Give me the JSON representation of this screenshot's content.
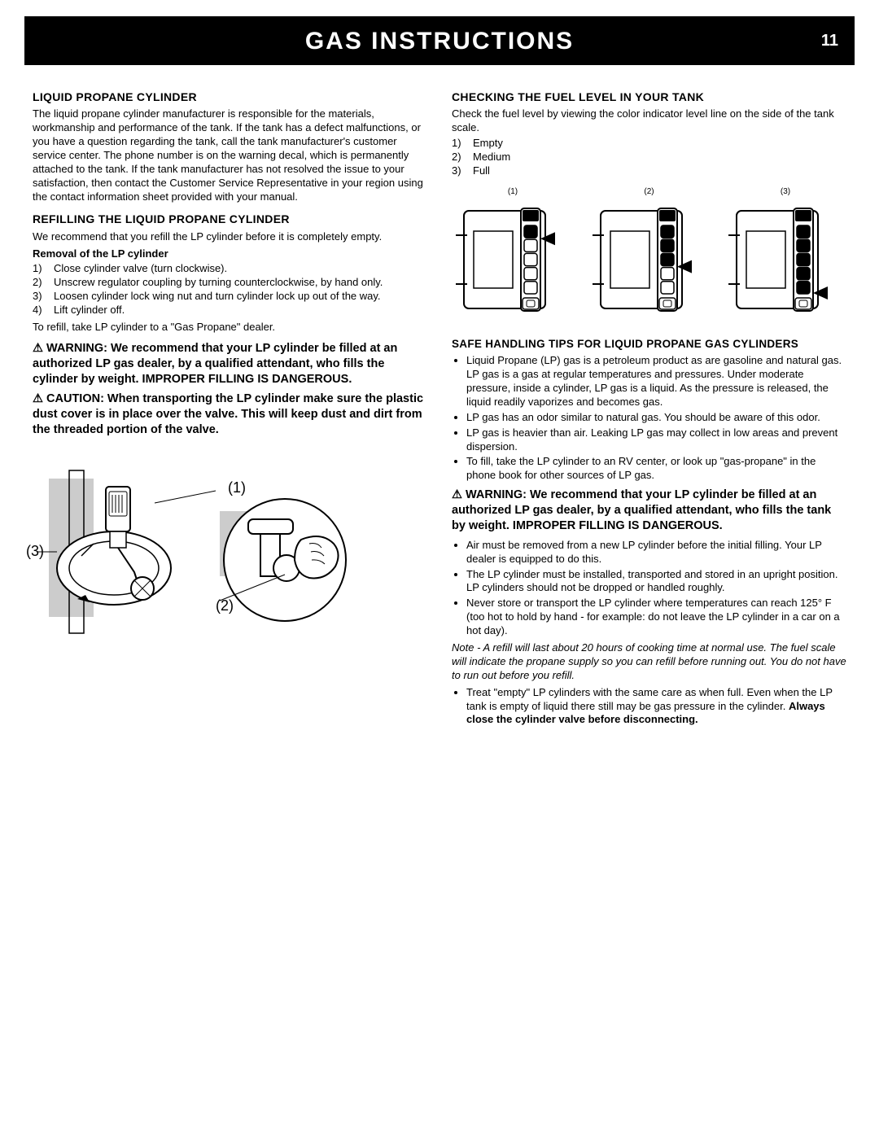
{
  "header": {
    "title": "GAS INSTRUCTIONS",
    "page": "11"
  },
  "left": {
    "s1_h": "LIQUID PROPANE CYLINDER",
    "s1_p": "The liquid propane cylinder manufacturer is responsible for the materials, workmanship and performance of the tank. If the tank has a defect malfunctions, or you have a question regarding the tank, call the tank manufacturer's customer service center. The phone number is on the warning decal, which is permanently attached to the tank. If the tank manufacturer has not resolved the issue to your satisfaction, then contact the Customer Service Representative in your region using the contact information sheet provided with your manual.",
    "s2_h": "REFILLING THE LIQUID PROPANE CYLINDER",
    "s2_p": "We recommend that you refill the LP cylinder before it is completely empty.",
    "s2_sub": "Removal of the LP cylinder",
    "s2_steps": [
      "Close cylinder valve (turn clockwise).",
      "Unscrew regulator coupling by turning counterclockwise, by hand only.",
      "Loosen cylinder lock wing nut and turn cylinder lock up out of the way.",
      "Lift cylinder off."
    ],
    "s2_after": "To refill, take LP cylinder to a \"Gas Propane\" dealer.",
    "warn1": "⚠ WARNING: We recommend that your LP cylinder be filled at an authorized LP gas dealer, by a qualified attendant, who fills the cylinder by weight. IMPROPER FILLING IS DANGEROUS.",
    "caution1": "⚠ CAUTION: When transporting the LP cylinder make sure the plastic dust cover is in place over the valve. This will keep dust and dirt from the threaded portion of the valve.",
    "fig_callouts": {
      "c1": "(1)",
      "c2": "(2)",
      "c3": "(3)"
    }
  },
  "right": {
    "s3_h": "CHECKING THE FUEL LEVEL IN YOUR TANK",
    "s3_p": "Check the fuel level by viewing the color indicator level line on the side of the tank scale.",
    "s3_levels": [
      "Empty",
      "Medium",
      "Full"
    ],
    "gauge_labels": [
      "(1)",
      "(2)",
      "(3)"
    ],
    "gauge_fill": [
      1,
      3,
      5
    ],
    "gauge_total": 5,
    "s4_h": "SAFE HANDLING TIPS FOR LIQUID PROPANE GAS CYLINDERS",
    "s4_b1": "Liquid Propane (LP) gas is a petroleum product as are gasoline and natural gas. LP gas is a gas at regular temperatures and pressures. Under moderate pressure, inside a cylinder, LP gas is a liquid. As the pressure is released, the liquid readily vaporizes and becomes gas.",
    "s4_b2": "LP gas has an odor similar to natural gas. You should be aware of this odor.",
    "s4_b3": "LP gas is heavier than air. Leaking LP gas may collect in low areas and prevent dispersion.",
    "s4_b4": "To fill, take the LP cylinder to an RV center, or look up \"gas-propane\" in the phone book for other sources of LP gas.",
    "warn2": "⚠ WARNING: We recommend that your LP cylinder be filled at an authorized LP gas dealer, by a qualified attendant, who fills the tank by weight. IMPROPER FILLING IS DANGEROUS.",
    "s4_b5": "Air must be removed from a new LP cylinder before the initial filling. Your LP dealer is equipped to do this.",
    "s4_b6": "The LP cylinder must be installed, transported and stored in an upright position. LP cylinders should not be dropped or handled roughly.",
    "s4_b7": "Never store or transport the LP cylinder where temperatures can reach 125° F (too hot to hold by hand - for example: do not leave the LP cylinder in a car on a hot day).",
    "note": "Note - A refill will last about 20 hours of cooking time at normal use. The fuel scale will indicate the propane supply so you can refill before running out. You do not have to run out before you refill.",
    "s4_b8a": "Treat \"empty\" LP cylinders with the same care as when full. Even when the LP tank is empty of liquid there still may be gas pressure in the cylinder. ",
    "s4_b8b": "Always close the cylinder valve before disconnecting."
  },
  "style": {
    "header_bg": "#000000",
    "header_fg": "#ffffff",
    "body_fg": "#000000",
    "body_bg": "#ffffff",
    "h_fontsize": 14,
    "body_fontsize": 13,
    "bold_fontsize": 14.5,
    "gauge_stroke": "#000000",
    "gauge_fill_empty": "#ffffff",
    "gauge_fill_full": "#000000",
    "arrow_fill": "#000000",
    "fig_gray": "#cccccc"
  }
}
